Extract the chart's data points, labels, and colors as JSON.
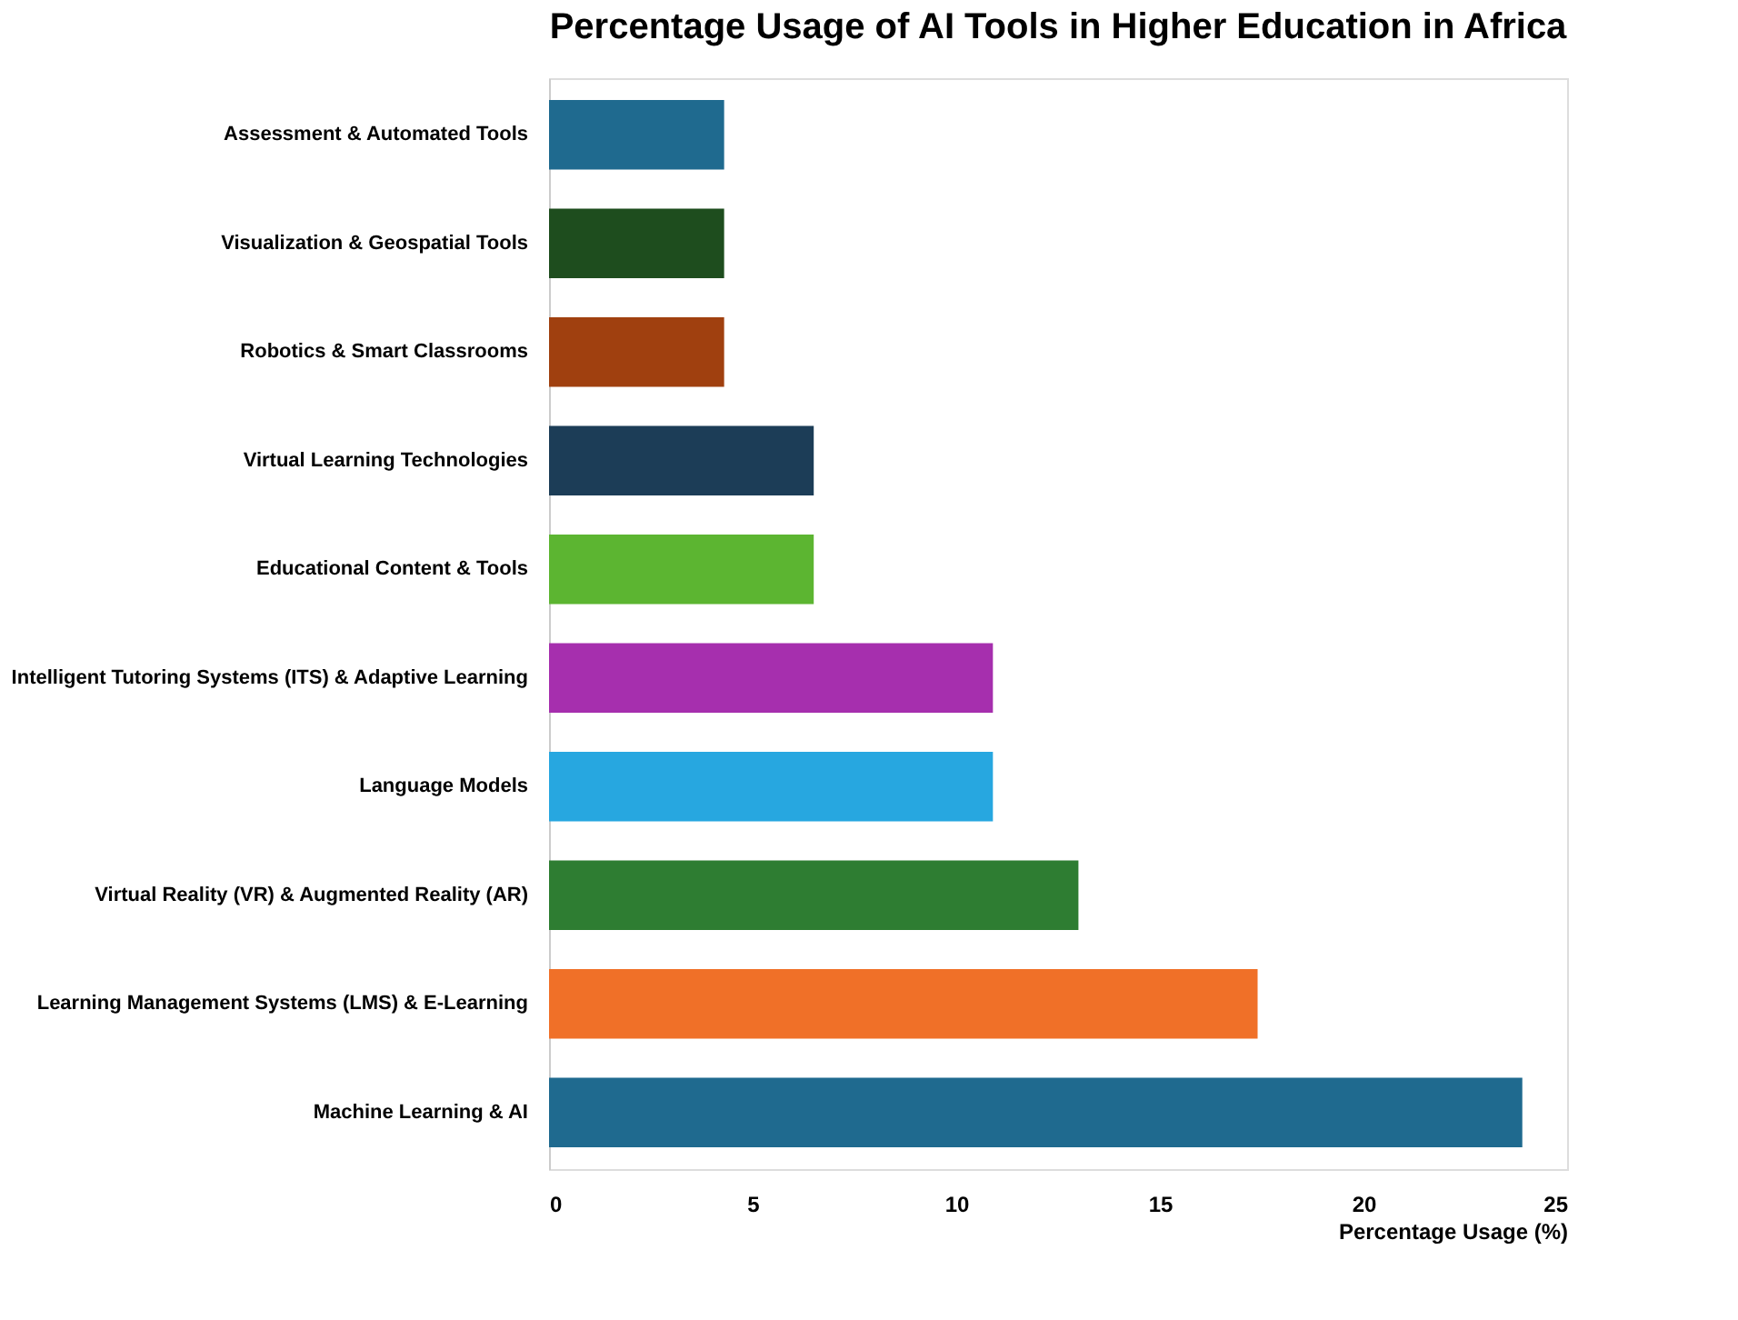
{
  "chart_data": {
    "type": "bar",
    "orientation": "horizontal",
    "title": "Percentage Usage of AI Tools in Higher Education in Africa",
    "xlabel": "Percentage Usage (%)",
    "categories": [
      "Assessment & Automated Tools",
      "Visualization & Geospatial Tools",
      "Robotics & Smart Classrooms",
      "Virtual Learning Technologies",
      "Educational Content & Tools",
      "Intelligent Tutoring Systems (ITS) & Adaptive Learning",
      "Language Models",
      "Virtual Reality (VR) & Augmented Reality (AR)",
      "Learning Management Systems (LMS) & E-Learning",
      "Machine Learning & AI"
    ],
    "values": [
      4.3,
      4.3,
      4.3,
      6.5,
      6.5,
      10.9,
      10.9,
      13.0,
      17.4,
      23.9
    ],
    "colors": [
      "#1f6a8f",
      "#1e4d1e",
      "#a0400f",
      "#1c3d57",
      "#5cb531",
      "#a62fae",
      "#27a7e0",
      "#2e7d32",
      "#f07028",
      "#1f6a8f"
    ],
    "xlim": [
      0,
      25
    ],
    "xticks": [
      0,
      5,
      10,
      15,
      20,
      25
    ],
    "grid": false
  }
}
